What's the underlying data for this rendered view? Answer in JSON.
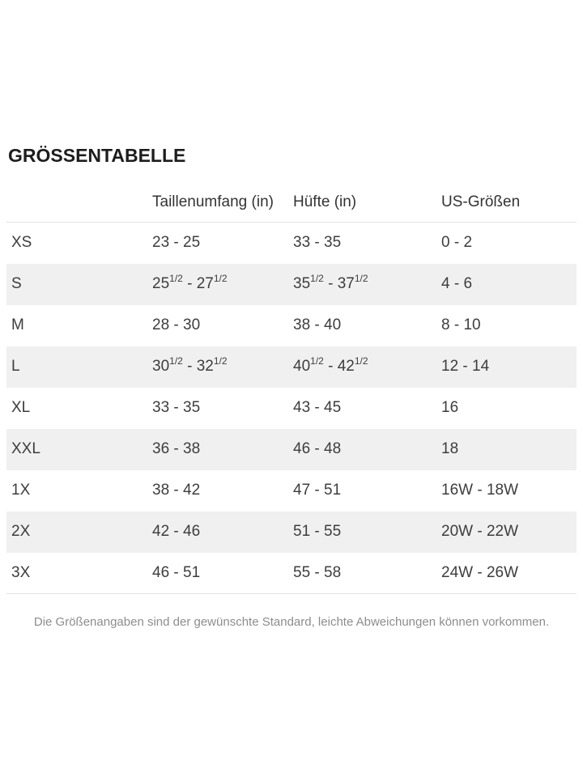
{
  "title": "GRÖSSENTABELLE",
  "table": {
    "columns": [
      "",
      "Taillenumfang (in)",
      "Hüfte (in)",
      "US-Größen"
    ],
    "rows": [
      {
        "size": "XS",
        "waist": "23 - 25",
        "hips": "33 - 35",
        "us": "0 - 2"
      },
      {
        "size": "S",
        "waist": "25^1/2^ - 27^1/2^",
        "hips": "35^1/2^ - 37^1/2^",
        "us": "4 - 6"
      },
      {
        "size": "M",
        "waist": "28 - 30",
        "hips": "38 - 40",
        "us": "8 - 10"
      },
      {
        "size": "L",
        "waist": "30^1/2^ - 32^1/2^",
        "hips": "40^1/2^ - 42^1/2^",
        "us": "12 - 14"
      },
      {
        "size": "XL",
        "waist": "33 - 35",
        "hips": "43 - 45",
        "us": "16"
      },
      {
        "size": "XXL",
        "waist": "36 - 38",
        "hips": "46 - 48",
        "us": "18"
      },
      {
        "size": "1X",
        "waist": "38 - 42",
        "hips": "47 - 51",
        "us": "16W - 18W"
      },
      {
        "size": "2X",
        "waist": "42 - 46",
        "hips": "51 - 55",
        "us": "20W - 22W"
      },
      {
        "size": "3X",
        "waist": "46 - 51",
        "hips": "55 - 58",
        "us": "24W - 26W"
      }
    ]
  },
  "footnote": "Die Größenangaben sind der gewünschte Standard, leichte Abweichungen können vorkommen.",
  "colors": {
    "stripe": "#f0f0f0",
    "divider": "#e3e3e3",
    "text": "#3d3d3d",
    "title": "#1d1d1d",
    "footnote": "#8d8d8d",
    "bg": "#ffffff"
  }
}
